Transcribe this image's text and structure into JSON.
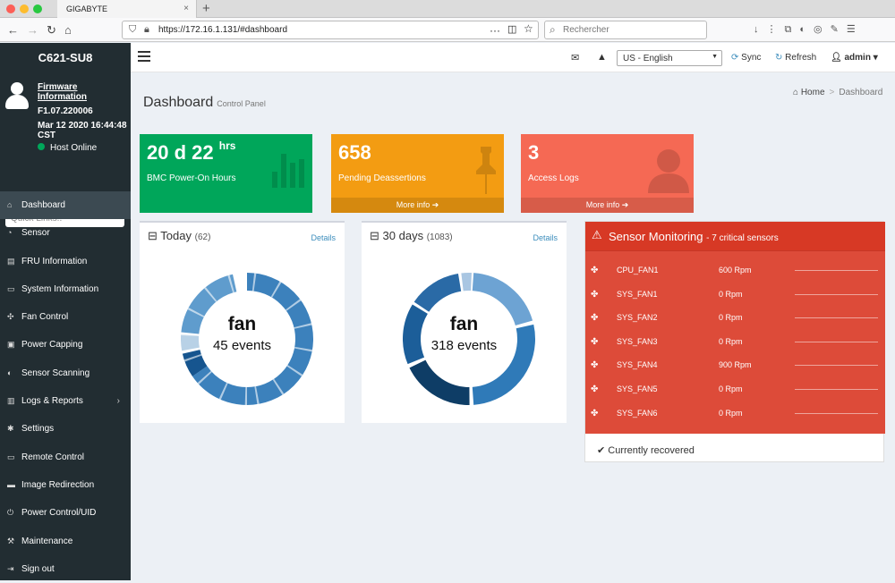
{
  "browser": {
    "tab_title": "GIGABYTE",
    "close_glyph": "×",
    "new_tab_glyph": "+",
    "url": "https://172.16.1.131/#dashboard",
    "search_placeholder": "Rechercher",
    "nav_back": "←",
    "nav_forward": "→",
    "nav_reload": "↻",
    "nav_home": "⌂",
    "page_actions": "···",
    "toolbar_icons": "↓⋮⧉◐◎✎☰"
  },
  "sidebar": {
    "model": "C621-SU8",
    "firmware_link": "Firmware Information",
    "firmware_version": "F1.07.220006",
    "date": "Mar 12 2020 16:44:48 CST",
    "host_status": "Host Online",
    "quick_links_placeholder": "Quick Links..",
    "items": [
      {
        "label": "Dashboard",
        "icon": "home-icon",
        "glyph": "⌂",
        "active": true
      },
      {
        "label": "Sensor",
        "icon": "tachometer-icon",
        "glyph": "◔"
      },
      {
        "label": "FRU Information",
        "icon": "fru-icon",
        "glyph": "▤"
      },
      {
        "label": "System Information",
        "icon": "laptop-icon",
        "glyph": "▭"
      },
      {
        "label": "Fan Control",
        "icon": "fan-icon",
        "glyph": "✣"
      },
      {
        "label": "Power Capping",
        "icon": "battery-icon",
        "glyph": "▣"
      },
      {
        "label": "Sensor Scanning",
        "icon": "toggle-icon",
        "glyph": "◐"
      },
      {
        "label": "Logs & Reports",
        "icon": "chart-icon",
        "glyph": "▥",
        "has_children": true,
        "chevron": "›"
      },
      {
        "label": "Settings",
        "icon": "gear-icon",
        "glyph": "✱"
      },
      {
        "label": "Remote Control",
        "icon": "desktop-icon",
        "glyph": "▭"
      },
      {
        "label": "Image Redirection",
        "icon": "drive-icon",
        "glyph": "▬"
      },
      {
        "label": "Power Control/UID",
        "icon": "power-icon",
        "glyph": "⏻"
      },
      {
        "label": "Maintenance",
        "icon": "wrench-icon",
        "glyph": "⚒"
      },
      {
        "label": "Sign out",
        "icon": "sign-out-icon",
        "glyph": "⇥"
      }
    ]
  },
  "header": {
    "language": "US - English",
    "sync_label": "Sync",
    "refresh_label": "Refresh",
    "user": "admin"
  },
  "page": {
    "title": "Dashboard",
    "subtitle": "Control Panel",
    "breadcrumb_home": "Home",
    "breadcrumb_separator": ">",
    "breadcrumb_current": "Dashboard"
  },
  "info_boxes": [
    {
      "value": "20 d 22",
      "value_suffix": "hrs",
      "label": "BMC Power-On Hours",
      "color": "#00a65a",
      "icon": "bar-chart-icon"
    },
    {
      "value": "658",
      "label": "Pending Deassertions",
      "more": "More info ➔",
      "color": "#f39c12",
      "icon": "pushpin-icon"
    },
    {
      "value": "3",
      "label": "Access Logs",
      "more": "More info ➔",
      "color": "#f56954",
      "icon": "user-icon"
    }
  ],
  "event_panels": [
    {
      "title": "Today",
      "count": "(62)",
      "details": "Details",
      "center_label": "fan",
      "center_sub": "45 events"
    },
    {
      "title": "30 days",
      "count": "(1083)",
      "details": "Details",
      "center_label": "fan",
      "center_sub": "318 events"
    }
  ],
  "sensor_monitoring": {
    "title": "Sensor Monitoring",
    "subtitle": "- 7 critical sensors",
    "footer": "Currently recovered",
    "color": "#dd4b39",
    "sensors": [
      {
        "name": "CPU_FAN1",
        "value": "600 Rpm"
      },
      {
        "name": "SYS_FAN1",
        "value": "0 Rpm"
      },
      {
        "name": "SYS_FAN2",
        "value": "0 Rpm"
      },
      {
        "name": "SYS_FAN3",
        "value": "0 Rpm"
      },
      {
        "name": "SYS_FAN4",
        "value": "900 Rpm"
      },
      {
        "name": "SYS_FAN5",
        "value": "0 Rpm"
      },
      {
        "name": "SYS_FAN6",
        "value": "0 Rpm"
      }
    ]
  }
}
